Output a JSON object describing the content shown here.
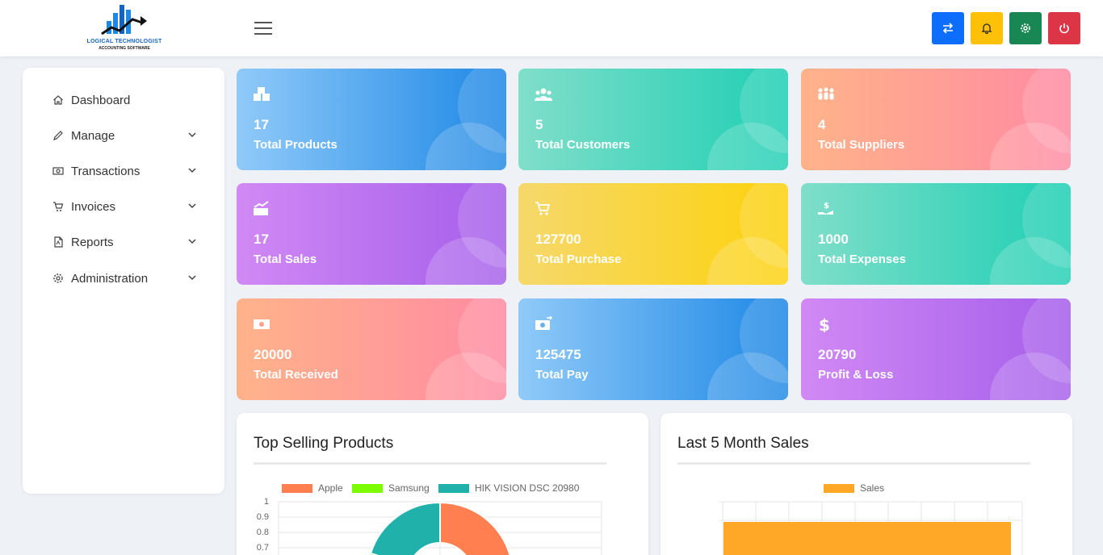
{
  "header": {
    "logo_line1": "LOGICAL TECHNOLOGIST",
    "logo_line2": "ACCOUNTING SOFTWARE",
    "buttons": [
      {
        "name": "swap-icon",
        "color": "#0d6efd"
      },
      {
        "name": "bell-icon",
        "color": "#ffc107"
      },
      {
        "name": "gear-icon",
        "color": "#198754"
      },
      {
        "name": "power-icon",
        "color": "#dc3545"
      }
    ]
  },
  "sidebar": {
    "items": [
      {
        "label": "Dashboard",
        "icon": "home-icon",
        "has_submenu": false
      },
      {
        "label": "Manage",
        "icon": "pencil-icon",
        "has_submenu": true
      },
      {
        "label": "Transactions",
        "icon": "cash-icon",
        "has_submenu": true
      },
      {
        "label": "Invoices",
        "icon": "cart-icon",
        "has_submenu": true
      },
      {
        "label": "Reports",
        "icon": "pdf-file-icon",
        "has_submenu": true
      },
      {
        "label": "Administration",
        "icon": "gear-icon",
        "has_submenu": true
      }
    ]
  },
  "stats": [
    {
      "value": "17",
      "label": "Total Products",
      "icon": "boxes-icon"
    },
    {
      "value": "5",
      "label": "Total Customers",
      "icon": "users-icon"
    },
    {
      "value": "4",
      "label": "Total Suppliers",
      "icon": "people-group-icon"
    },
    {
      "value": "17",
      "label": "Total Sales",
      "icon": "sales-chart-icon"
    },
    {
      "value": "127700",
      "label": "Total Purchase",
      "icon": "cart-icon"
    },
    {
      "value": "1000",
      "label": "Total Expenses",
      "icon": "hand-money-icon"
    },
    {
      "value": "20000",
      "label": "Total Received",
      "icon": "cash-icon"
    },
    {
      "value": "125475",
      "label": "Total Pay",
      "icon": "money-transfer-icon"
    },
    {
      "value": "20790",
      "label": "Profit & Loss",
      "icon": "dollar-icon"
    }
  ],
  "top_selling": {
    "title": "Top Selling Products",
    "chart_data": {
      "type": "pie",
      "categories": [
        "Apple",
        "Samsung",
        "HIK VISION DSC 20980"
      ],
      "colors": [
        "#ff7f50",
        "#7cfc00",
        "#20b2aa"
      ],
      "y_ticks": [
        "1",
        "0.9",
        "0.8",
        "0.7"
      ]
    }
  },
  "last_sales": {
    "title": "Last 5 Month Sales",
    "chart_data": {
      "type": "bar",
      "series": [
        {
          "name": "Sales",
          "color": "#ffa726"
        }
      ]
    }
  }
}
